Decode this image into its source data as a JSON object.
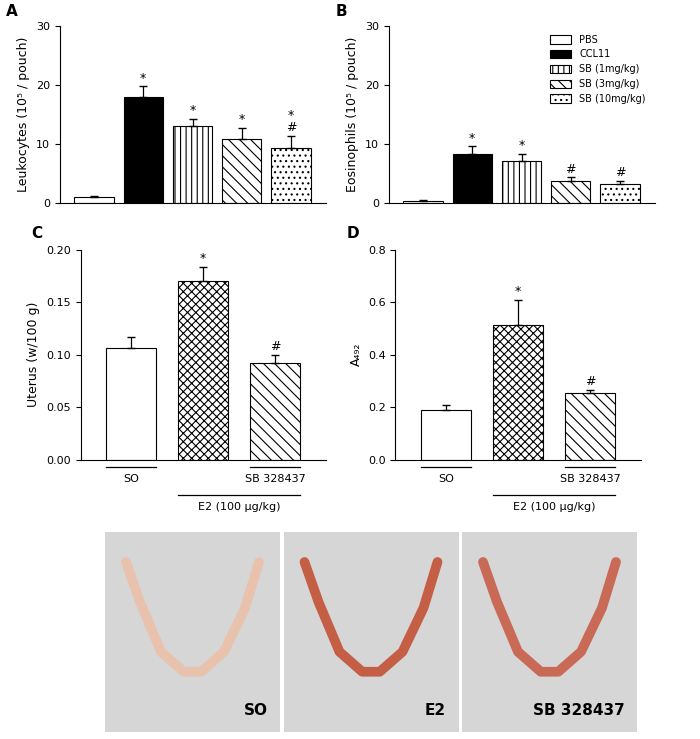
{
  "chart_data": [
    {
      "type": "bar",
      "title": "A",
      "y_label": "Leukocytes (10⁵ / pouch)",
      "categories": [
        "PBS",
        "CCL11",
        "SB (1mg/kg)",
        "SB (3mg/kg)",
        "SB (10mg/kg)"
      ],
      "values": [
        1.0,
        18.0,
        13.1,
        10.8,
        9.4
      ],
      "errors": [
        0.3,
        1.8,
        1.2,
        2.0,
        2.0
      ],
      "annotations": [
        null,
        [
          "*"
        ],
        [
          "*"
        ],
        [
          "*"
        ],
        [
          "*",
          "#"
        ]
      ],
      "colors": [
        "#ffffff",
        "#000000",
        "#ffffff",
        "#ffffff",
        "#ffffff"
      ],
      "ylim": [
        0,
        30
      ],
      "yticks": [
        0,
        10,
        20,
        30
      ],
      "tick_labels": "y"
    },
    {
      "type": "bar",
      "title": "B",
      "y_label": "Eosinophils (10⁵ / pouch)",
      "categories": [
        "PBS",
        "CCL11",
        "SB (1mg/kg)",
        "SB (3mg/kg)",
        "SB (10mg/kg)"
      ],
      "values": [
        0.3,
        8.3,
        7.2,
        3.7,
        3.2
      ],
      "errors": [
        0.2,
        1.3,
        1.2,
        0.7,
        0.6
      ],
      "annotations": [
        null,
        [
          "*"
        ],
        [
          "*"
        ],
        [
          "#"
        ],
        [
          "#"
        ]
      ],
      "colors": [
        "#ffffff",
        "#000000",
        "#ffffff",
        "#ffffff",
        "#ffffff"
      ],
      "ylim": [
        0,
        30
      ],
      "yticks": [
        0,
        10,
        20,
        30
      ],
      "tick_labels": "y",
      "legend": "upper right"
    },
    {
      "type": "bar",
      "title": "C",
      "y_label": "Uterus (w/100 g)",
      "categories": [
        "SO",
        null,
        "SB 328437"
      ],
      "group_label": "E2 (100 µg/kg)",
      "values": [
        0.106,
        0.17,
        0.092
      ],
      "errors": [
        0.011,
        0.014,
        0.008
      ],
      "annotations": [
        null,
        [
          "*"
        ],
        [
          "#"
        ]
      ],
      "colors": [
        "#ffffff",
        "#ffffff",
        "#ffffff"
      ],
      "ylim": [
        0,
        0.2
      ],
      "yticks": [
        {
          "value": 0,
          "label": "0.00"
        },
        {
          "value": 0.05,
          "label": "0.05"
        },
        {
          "value": 0.1,
          "label": "0.10"
        },
        {
          "value": 0.15,
          "label": "0.15"
        },
        {
          "value": 0.2,
          "label": "0.20"
        }
      ]
    },
    {
      "type": "bar",
      "title": "D",
      "y_label": "A₄₉₂",
      "categories": [
        "SO",
        null,
        "SB 328437"
      ],
      "group_label": "E2 (100 µg/kg)",
      "values": [
        0.19,
        0.515,
        0.255
      ],
      "errors": [
        0.02,
        0.095,
        0.01
      ],
      "annotations": [
        null,
        [
          "*"
        ],
        [
          "#"
        ]
      ],
      "colors": [
        "#ffffff",
        "#ffffff",
        "#ffffff"
      ],
      "ylim": [
        0,
        0.8
      ],
      "yticks": [
        {
          "value": 0,
          "label": "0.0"
        },
        0.2,
        0.4,
        0.6,
        0.8
      ]
    }
  ],
  "photos": {
    "labels": [
      "SO",
      "E2",
      "SB 328437"
    ]
  }
}
